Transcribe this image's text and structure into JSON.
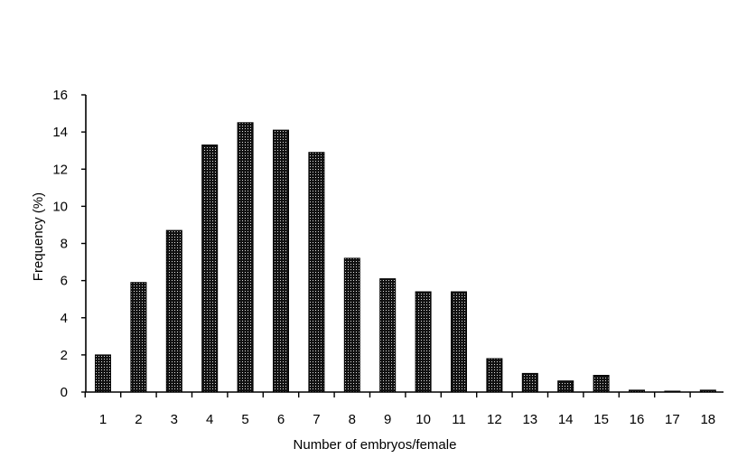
{
  "chart_data": {
    "type": "bar",
    "xlabel": "Number of embryos/female",
    "ylabel": "Frequency (%)",
    "categories": [
      "1",
      "2",
      "3",
      "4",
      "5",
      "6",
      "7",
      "8",
      "9",
      "10",
      "11",
      "12",
      "13",
      "14",
      "15",
      "16",
      "17",
      "18"
    ],
    "values": [
      2.0,
      5.9,
      8.7,
      13.3,
      14.5,
      14.1,
      12.9,
      7.2,
      6.1,
      5.4,
      5.4,
      1.8,
      1.0,
      0.6,
      0.9,
      0.1,
      0.05,
      0.1
    ],
    "ylim": [
      0,
      16
    ],
    "yticks": [
      "0",
      "2",
      "4",
      "6",
      "8",
      "10",
      "12",
      "14",
      "16"
    ],
    "grid": false,
    "legend": "none",
    "bar_color": "#2b2b2b"
  }
}
